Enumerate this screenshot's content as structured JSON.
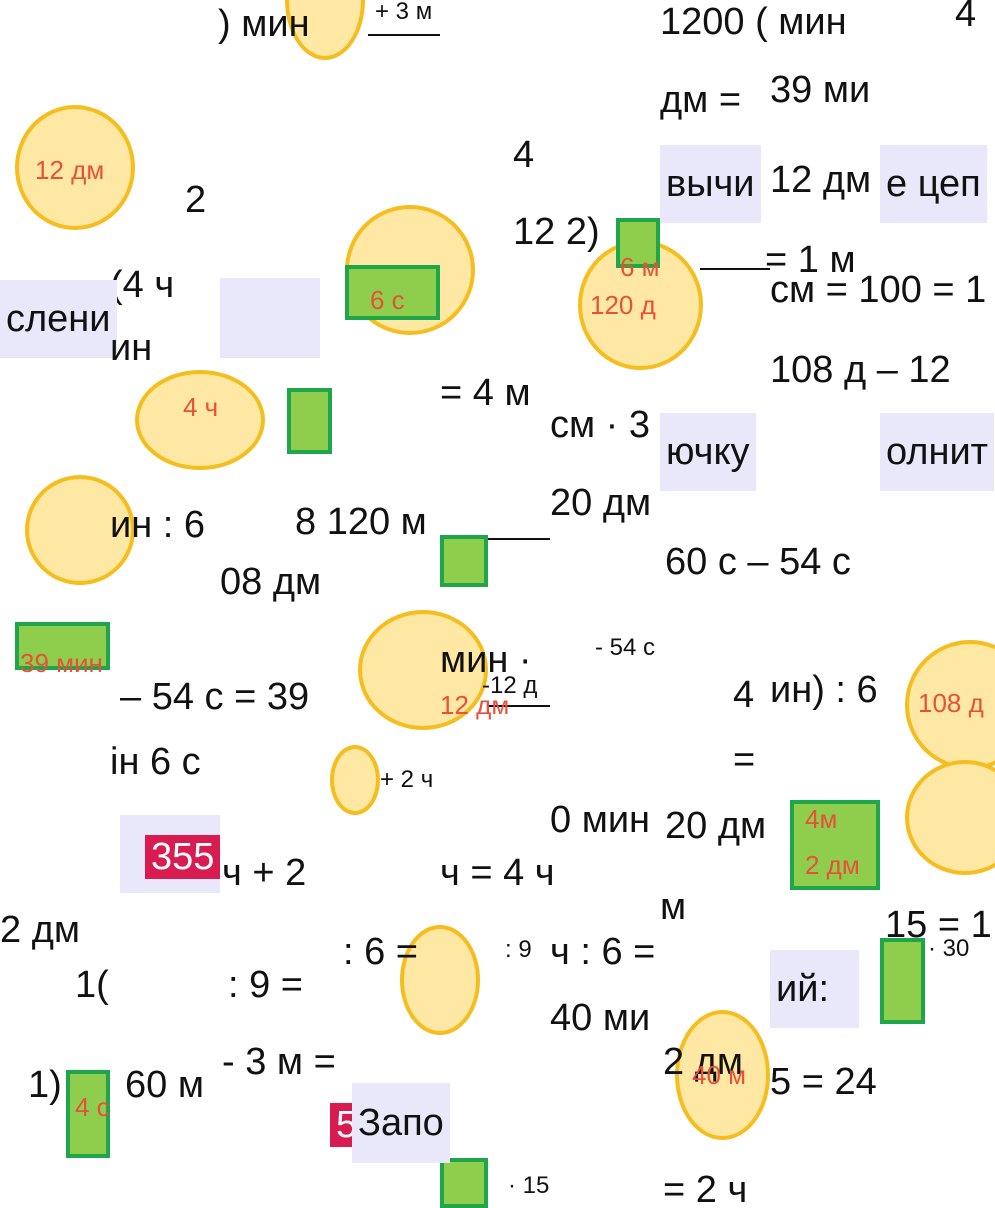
{
  "fragments": [
    ") мин",
    "+ 3 м",
    "1200 ( мин",
    "4",
    "дм =",
    "39 ми",
    "12 дм",
    "2",
    "4",
    "12 2)",
    "вычи",
    "12 дм",
    "е цеп",
    "(4 ч",
    "слени",
    "ин",
    "6 с",
    "120 д",
    "см = 100 = 1",
    "108 д – 12",
    "= 4 м",
    "см · 3",
    "ючку",
    "олнит",
    "ин : 6",
    "8 120 м",
    "20 дм",
    "60 с – 54 с",
    "08 дм",
    "39 мин",
    "мин ·",
    "- 54 с",
    "– 54 с = 39",
    "4",
    "ин) : 6",
    "108 д",
    "-12 д",
    "ін 6 с",
    "=",
    "355",
    "ч + 2",
    "ч = 4 ч",
    "0 мин",
    "20 дм",
    "4м",
    "2 дм",
    "м",
    "15 = 1",
    "1(",
    ": 9 =",
    ": 6 =",
    ": 9",
    "ч : 6 =",
    "ий:",
    "40 ми",
    "2 дм",
    "1)",
    "60 м",
    "- 3 м =",
    "5 = 24",
    "5",
    "Запо",
    "= 2 ч",
    "40 м",
    "6 м",
    "4 ч",
    "· 30",
    "· 15",
    "+ 2 ч",
    "12 дм",
    "= 1 м",
    "2 дм",
    "4 с"
  ]
}
